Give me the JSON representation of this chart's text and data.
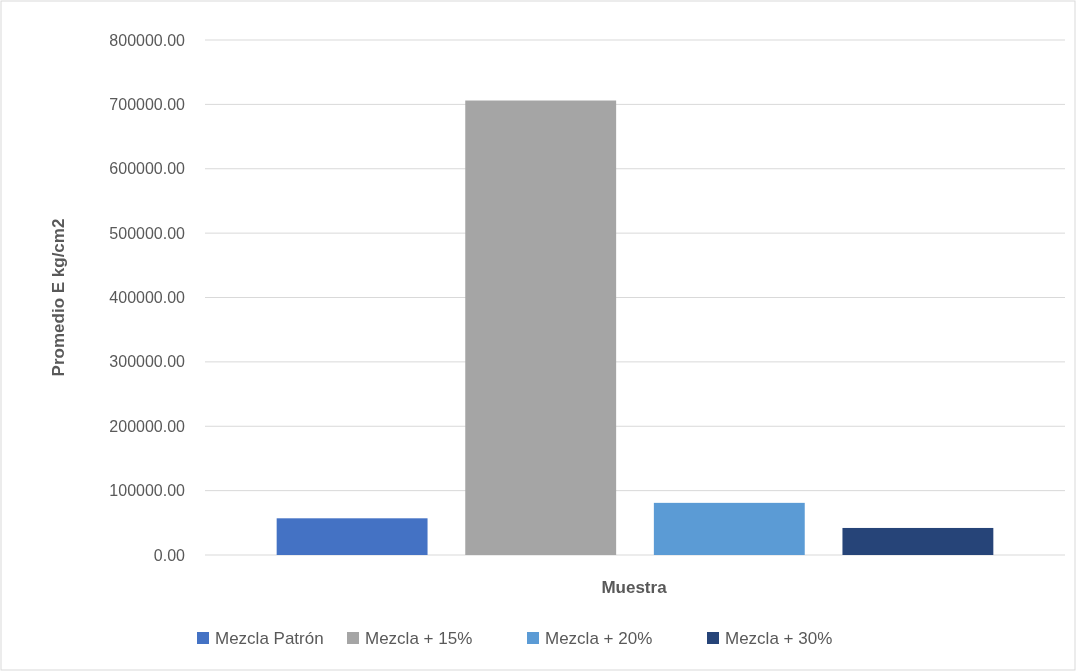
{
  "chart_data": {
    "type": "bar",
    "xlabel": "Muestra",
    "ylabel": "Promedio E kg/cm2",
    "categories": [
      null
    ],
    "series": [
      {
        "name": "Mezcla Patrón",
        "color": "#4472c4",
        "values": [
          57000
        ]
      },
      {
        "name": "Mezcla + 15%",
        "color": "#a5a5a5",
        "values": [
          706000
        ]
      },
      {
        "name": "Mezcla + 20%",
        "color": "#5b9bd5",
        "values": [
          81000
        ]
      },
      {
        "name": "Mezcla + 30%",
        "color": "#264478",
        "values": [
          42000
        ]
      }
    ],
    "ylim": [
      0,
      800000
    ],
    "yticks": [
      {
        "value": 0,
        "label": "0.00"
      },
      {
        "value": 100000,
        "label": "100000.00"
      },
      {
        "value": 200000,
        "label": "200000.00"
      },
      {
        "value": 300000,
        "label": "300000.00"
      },
      {
        "value": 400000,
        "label": "400000.00"
      },
      {
        "value": 500000,
        "label": "500000.00"
      },
      {
        "value": 600000,
        "label": "600000.00"
      },
      {
        "value": 700000,
        "label": "700000.00"
      },
      {
        "value": 800000,
        "label": "800000.00"
      }
    ],
    "grid": "y",
    "legend": "bottom"
  }
}
